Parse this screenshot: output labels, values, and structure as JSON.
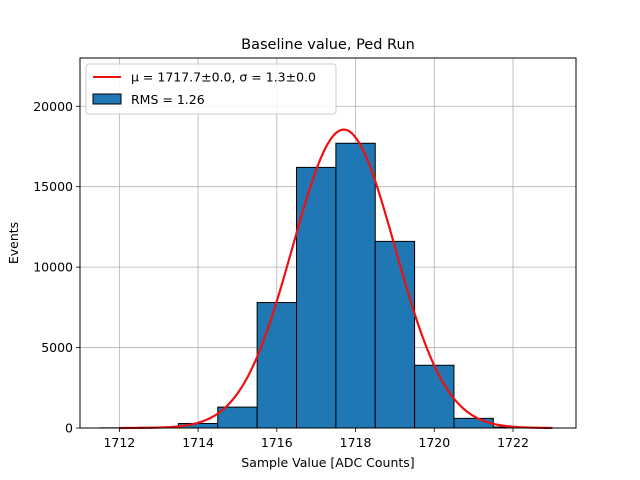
{
  "chart_data": {
    "type": "bar",
    "title": "Baseline value, Ped Run",
    "xlabel": "Sample Value [ADC Counts]",
    "ylabel": "Events",
    "xlim": [
      1711,
      1723.6
    ],
    "ylim": [
      0,
      23000
    ],
    "xticks": [
      1712,
      1714,
      1716,
      1718,
      1720,
      1722
    ],
    "yticks": [
      0,
      5000,
      10000,
      15000,
      20000
    ],
    "grid": true,
    "legend_position": "top-left",
    "histogram": {
      "name": "RMS = 1.26",
      "color": "#1f77b4",
      "edge_color": "#000000",
      "bin_edges": [
        1711.5,
        1712.5,
        1713.5,
        1714.5,
        1715.5,
        1716.5,
        1717.5,
        1718.5,
        1719.5,
        1720.5,
        1721.5,
        1722.5
      ],
      "counts": [
        10,
        40,
        280,
        1300,
        7800,
        16200,
        17700,
        11600,
        3900,
        600,
        60
      ]
    },
    "fit": {
      "name_prefix": "μ = 1717.7±0.0, σ = 1.3±0.0",
      "color": "#ee1111",
      "mu": 1717.7,
      "sigma": 1.3,
      "amplitude": 18550,
      "x_range": [
        1712,
        1723
      ]
    }
  }
}
